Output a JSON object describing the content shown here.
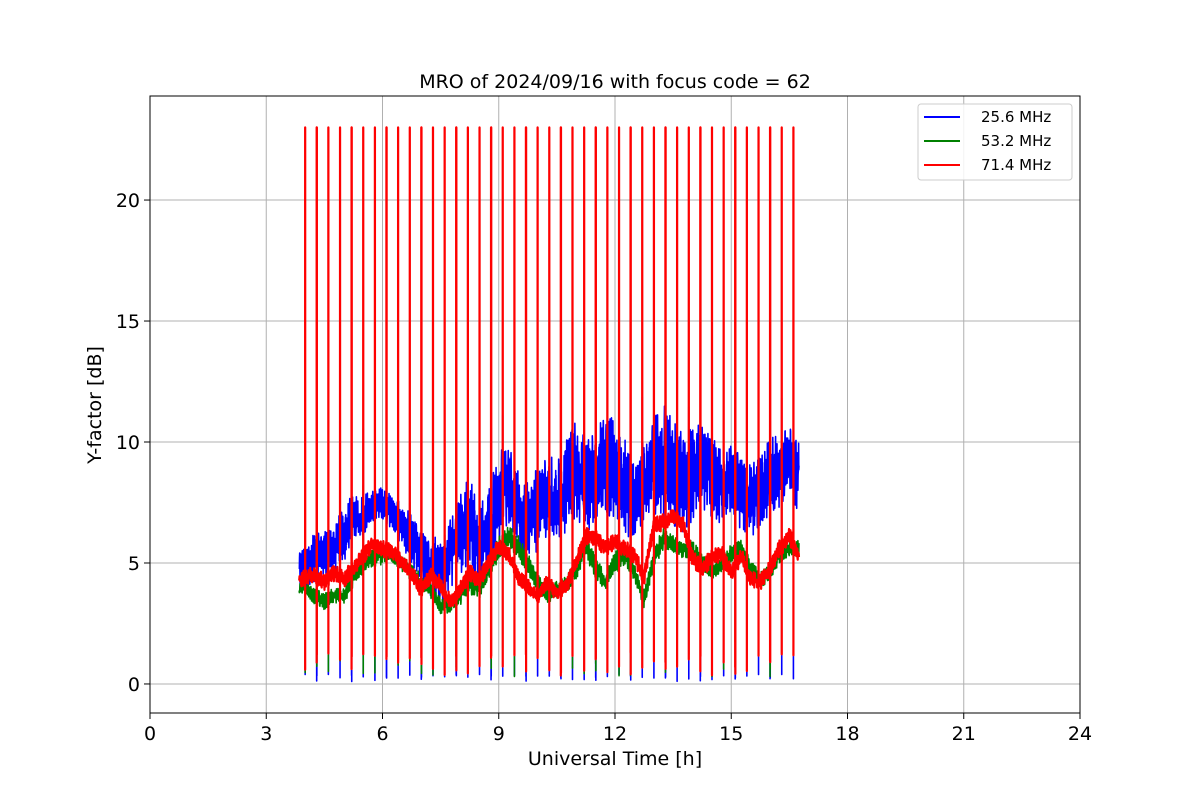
{
  "chart_data": {
    "type": "line",
    "title": "MRO of 2024/09/16 with focus code = 62",
    "xlabel": "Universal Time [h]",
    "ylabel": "Y-factor [dB]",
    "xlim": [
      0,
      24
    ],
    "ylim": [
      -1.2,
      24.3
    ],
    "xticks": [
      0,
      3,
      6,
      9,
      12,
      15,
      18,
      21,
      24
    ],
    "xtick_labels": [
      "0",
      "3",
      "6",
      "9",
      "12",
      "15",
      "18",
      "21",
      "24"
    ],
    "yticks": [
      0,
      5,
      10,
      15,
      20
    ],
    "ytick_labels": [
      "0",
      "5",
      "10",
      "15",
      "20"
    ],
    "grid": true,
    "legend_position": "top-right",
    "x_start": 3.85,
    "x_end": 16.75,
    "spike_period_h": 0.3,
    "spike_peak_db": 23,
    "series": [
      {
        "name": "25.6 MHz",
        "color": "#0000ff",
        "x": [
          3.85,
          4.0,
          4.25,
          4.5,
          4.75,
          5.0,
          5.25,
          5.5,
          5.75,
          6.0,
          6.25,
          6.5,
          6.75,
          7.0,
          7.25,
          7.5,
          7.75,
          8.0,
          8.25,
          8.5,
          8.75,
          9.0,
          9.25,
          9.5,
          9.75,
          10.0,
          10.25,
          10.5,
          10.75,
          11.0,
          11.25,
          11.5,
          11.75,
          12.0,
          12.25,
          12.5,
          12.75,
          13.0,
          13.25,
          13.5,
          13.75,
          14.0,
          14.25,
          14.5,
          14.75,
          15.0,
          15.25,
          15.5,
          15.75,
          16.0,
          16.25,
          16.5,
          16.75
        ],
        "values": [
          4.6,
          4.8,
          5.3,
          5.4,
          5.6,
          6.2,
          6.7,
          7.0,
          7.3,
          7.5,
          7.1,
          6.5,
          6.0,
          5.5,
          4.9,
          4.6,
          5.4,
          6.2,
          6.8,
          5.6,
          6.4,
          7.8,
          8.4,
          7.0,
          6.6,
          7.3,
          7.9,
          7.5,
          8.3,
          8.9,
          8.2,
          8.6,
          8.9,
          9.1,
          8.3,
          7.8,
          8.3,
          9.0,
          9.2,
          8.8,
          8.3,
          8.6,
          9.0,
          8.6,
          8.1,
          8.4,
          7.9,
          7.6,
          7.9,
          8.5,
          8.8,
          9.2,
          8.5
        ],
        "amplitude": [
          0.8,
          0.8,
          0.9,
          0.9,
          1.0,
          1.0,
          1.0,
          0.7,
          0.6,
          0.6,
          0.7,
          0.8,
          0.9,
          1.0,
          1.1,
          1.2,
          1.3,
          1.5,
          1.6,
          1.6,
          1.6,
          1.5,
          1.5,
          1.5,
          1.5,
          1.5,
          1.5,
          1.6,
          1.7,
          1.7,
          1.7,
          1.8,
          1.9,
          1.9,
          1.8,
          1.5,
          1.5,
          1.7,
          2.2,
          2.0,
          1.8,
          1.7,
          1.6,
          1.5,
          1.4,
          1.3,
          1.3,
          1.3,
          1.4,
          1.4,
          1.4,
          1.4,
          1.2
        ]
      },
      {
        "name": "53.2 MHz",
        "color": "#008000",
        "x": [
          3.85,
          4.0,
          4.25,
          4.5,
          4.75,
          5.0,
          5.25,
          5.5,
          5.75,
          6.0,
          6.25,
          6.5,
          6.75,
          7.0,
          7.25,
          7.5,
          7.75,
          8.0,
          8.25,
          8.5,
          8.75,
          9.0,
          9.25,
          9.5,
          9.75,
          10.0,
          10.25,
          10.5,
          10.75,
          11.0,
          11.25,
          11.5,
          11.75,
          12.0,
          12.25,
          12.5,
          12.75,
          13.0,
          13.25,
          13.5,
          13.75,
          14.0,
          14.25,
          14.5,
          14.75,
          15.0,
          15.25,
          15.5,
          15.75,
          16.0,
          16.25,
          16.5,
          16.75
        ],
        "values": [
          3.9,
          4.0,
          3.6,
          3.4,
          3.7,
          3.6,
          4.4,
          4.9,
          5.2,
          5.3,
          5.4,
          5.0,
          4.6,
          4.2,
          3.9,
          3.2,
          3.3,
          3.6,
          4.2,
          4.0,
          4.8,
          5.6,
          6.1,
          5.7,
          5.0,
          4.2,
          3.7,
          3.9,
          4.1,
          4.8,
          5.7,
          4.8,
          4.2,
          5.0,
          5.4,
          4.6,
          3.5,
          5.2,
          6.0,
          5.8,
          5.5,
          5.6,
          5.0,
          4.6,
          5.0,
          5.4,
          5.6,
          4.8,
          4.3,
          4.6,
          5.3,
          5.6,
          5.6
        ],
        "amplitude": [
          0.2,
          0.2,
          0.3,
          0.3,
          0.3,
          0.3,
          0.3,
          0.3,
          0.3,
          0.3,
          0.3,
          0.3,
          0.3,
          0.3,
          0.3,
          0.3,
          0.3,
          0.3,
          0.4,
          0.4,
          0.4,
          0.4,
          0.4,
          0.4,
          0.4,
          0.3,
          0.3,
          0.3,
          0.3,
          0.4,
          0.4,
          0.4,
          0.3,
          0.4,
          0.4,
          0.3,
          0.3,
          0.4,
          0.4,
          0.3,
          0.3,
          0.3,
          0.3,
          0.3,
          0.3,
          0.3,
          0.3,
          0.3,
          0.3,
          0.3,
          0.3,
          0.3,
          0.3
        ]
      },
      {
        "name": "71.4 MHz",
        "color": "#ff0000",
        "x": [
          3.85,
          4.0,
          4.25,
          4.5,
          4.75,
          5.0,
          5.25,
          5.5,
          5.75,
          6.0,
          6.25,
          6.5,
          6.75,
          7.0,
          7.25,
          7.5,
          7.75,
          8.0,
          8.25,
          8.5,
          8.75,
          9.0,
          9.25,
          9.5,
          9.75,
          10.0,
          10.25,
          10.5,
          10.75,
          11.0,
          11.25,
          11.5,
          11.75,
          12.0,
          12.25,
          12.5,
          12.75,
          13.0,
          13.25,
          13.5,
          13.75,
          14.0,
          14.25,
          14.5,
          14.75,
          15.0,
          15.25,
          15.5,
          15.75,
          16.0,
          16.25,
          16.5,
          16.75
        ],
        "values": [
          4.3,
          4.4,
          4.5,
          4.2,
          4.6,
          4.3,
          4.8,
          5.3,
          5.8,
          5.6,
          5.5,
          5.1,
          4.6,
          3.9,
          4.5,
          4.1,
          3.4,
          3.9,
          4.6,
          4.3,
          5.0,
          5.7,
          5.4,
          4.4,
          4.0,
          3.6,
          4.2,
          3.7,
          4.1,
          5.0,
          6.1,
          6.0,
          5.6,
          5.9,
          5.6,
          5.3,
          4.4,
          6.5,
          6.7,
          6.9,
          6.6,
          5.2,
          4.8,
          5.2,
          5.4,
          4.6,
          5.3,
          4.3,
          4.2,
          4.8,
          5.6,
          6.1,
          5.3
        ],
        "amplitude": [
          0.3,
          0.3,
          0.3,
          0.3,
          0.3,
          0.3,
          0.3,
          0.3,
          0.3,
          0.3,
          0.3,
          0.3,
          0.3,
          0.3,
          0.3,
          0.3,
          0.3,
          0.3,
          0.3,
          0.3,
          0.3,
          0.3,
          0.3,
          0.3,
          0.3,
          0.3,
          0.3,
          0.3,
          0.3,
          0.3,
          0.3,
          0.3,
          0.3,
          0.3,
          0.3,
          0.3,
          0.3,
          0.3,
          0.3,
          0.3,
          0.3,
          0.3,
          0.3,
          0.3,
          0.3,
          0.3,
          0.3,
          0.3,
          0.3,
          0.3,
          0.3,
          0.3,
          0.3
        ]
      }
    ]
  }
}
